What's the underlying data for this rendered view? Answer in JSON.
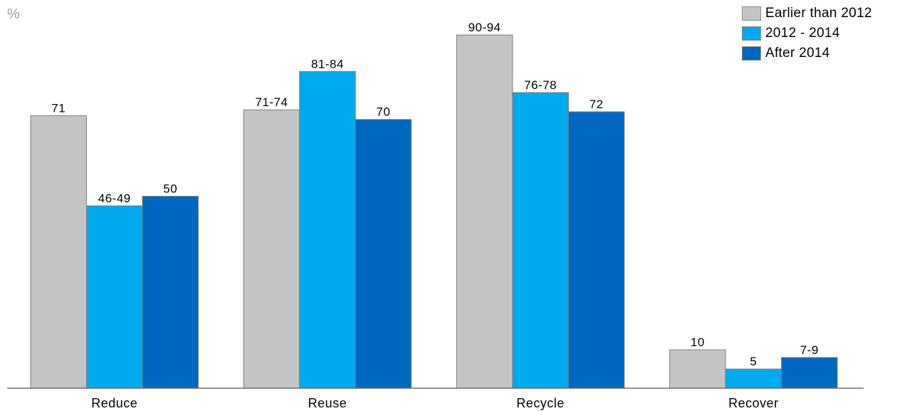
{
  "chart_data": {
    "type": "bar",
    "unit_label": "%",
    "categories": [
      "Reduce",
      "Reuse",
      "Recycle",
      "Recover"
    ],
    "series": [
      {
        "name": "Earlier than 2012",
        "color": "#c4c4c4",
        "values": [
          71,
          72.5,
          92,
          10
        ],
        "labels": [
          "71",
          "71-74",
          "90-94",
          "10"
        ]
      },
      {
        "name": "2012 - 2014",
        "color": "#00aaee",
        "values": [
          47.5,
          82.5,
          77,
          5
        ],
        "labels": [
          "46-49",
          "81-84",
          "76-78",
          "5"
        ]
      },
      {
        "name": "After 2014",
        "color": "#0067c0",
        "values": [
          50,
          70,
          72,
          8
        ],
        "labels": [
          "50",
          "70",
          "72",
          "7-9"
        ]
      }
    ],
    "ylim": [
      0,
      100
    ],
    "grid": false,
    "legend_position": "top-right"
  }
}
